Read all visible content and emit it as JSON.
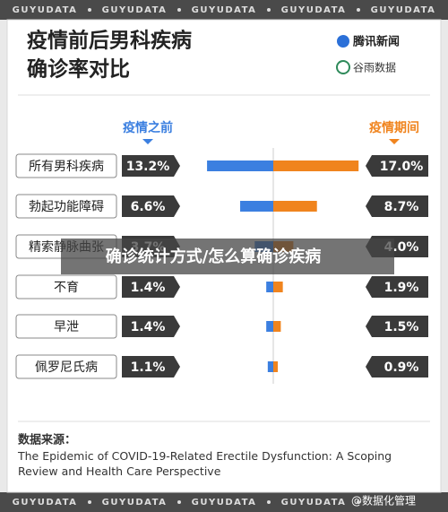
{
  "chart_data": {
    "type": "butterfly-bar",
    "title": [
      "疫情前后男科疾病",
      "确诊率对比"
    ],
    "logos": [
      "腾讯新闻",
      "谷雨数据"
    ],
    "watermark": "GUYUDATA",
    "categories": [
      "所有男科疾病",
      "勃起功能障碍",
      "精索静脉曲张",
      "不育",
      "早泄",
      "佩罗尼氏病"
    ],
    "series": [
      {
        "name": "疫情之前",
        "color": "#3b7fe0",
        "values": [
          13.2,
          6.6,
          3.7,
          1.4,
          1.4,
          1.1
        ],
        "value_labels": [
          "13.2%",
          "6.6%",
          "3.7%",
          "1.4%",
          "1.4%",
          "1.1%"
        ]
      },
      {
        "name": "疫情期间",
        "color": "#f0841e",
        "values": [
          17.0,
          8.7,
          4.0,
          1.9,
          1.5,
          0.9
        ],
        "value_labels": [
          "17.0%",
          "8.7%",
          "4.0%",
          "1.9%",
          "1.5%",
          "0.9%"
        ]
      }
    ],
    "overlay_caption": "确诊统计方式/怎么算确诊疾病",
    "source_label": "数据来源：",
    "source": "The Epidemic of COVID-19-Related Erectile Dysfunction: A Scoping Review and Health Care Perspective",
    "credit": "@数据化管理"
  }
}
